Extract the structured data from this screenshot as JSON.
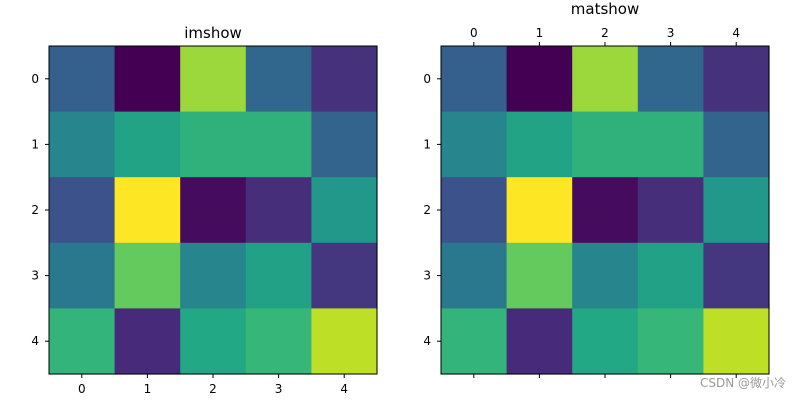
{
  "colormap": "viridis",
  "watermark": "CSDN @微小冷",
  "chart_data": [
    {
      "type": "heatmap",
      "title": "imshow",
      "x_ticks": [
        "0",
        "1",
        "2",
        "3",
        "4"
      ],
      "y_ticks": [
        "0",
        "1",
        "2",
        "3",
        "4"
      ],
      "x_tick_position": "bottom",
      "values": [
        [
          0.3,
          0.0,
          0.85,
          0.33,
          0.14
        ],
        [
          0.45,
          0.58,
          0.64,
          0.64,
          0.32
        ],
        [
          0.25,
          1.0,
          0.03,
          0.13,
          0.53
        ],
        [
          0.4,
          0.76,
          0.45,
          0.57,
          0.16
        ],
        [
          0.65,
          0.12,
          0.6,
          0.66,
          0.9
        ]
      ]
    },
    {
      "type": "heatmap",
      "title": "matshow",
      "x_ticks": [
        "0",
        "1",
        "2",
        "3",
        "4"
      ],
      "y_ticks": [
        "0",
        "1",
        "2",
        "3",
        "4"
      ],
      "x_tick_position": "top",
      "values": [
        [
          0.3,
          0.0,
          0.85,
          0.33,
          0.14
        ],
        [
          0.45,
          0.58,
          0.64,
          0.64,
          0.32
        ],
        [
          0.25,
          1.0,
          0.03,
          0.13,
          0.53
        ],
        [
          0.4,
          0.76,
          0.45,
          0.57,
          0.16
        ],
        [
          0.65,
          0.12,
          0.6,
          0.66,
          0.9
        ]
      ]
    }
  ]
}
